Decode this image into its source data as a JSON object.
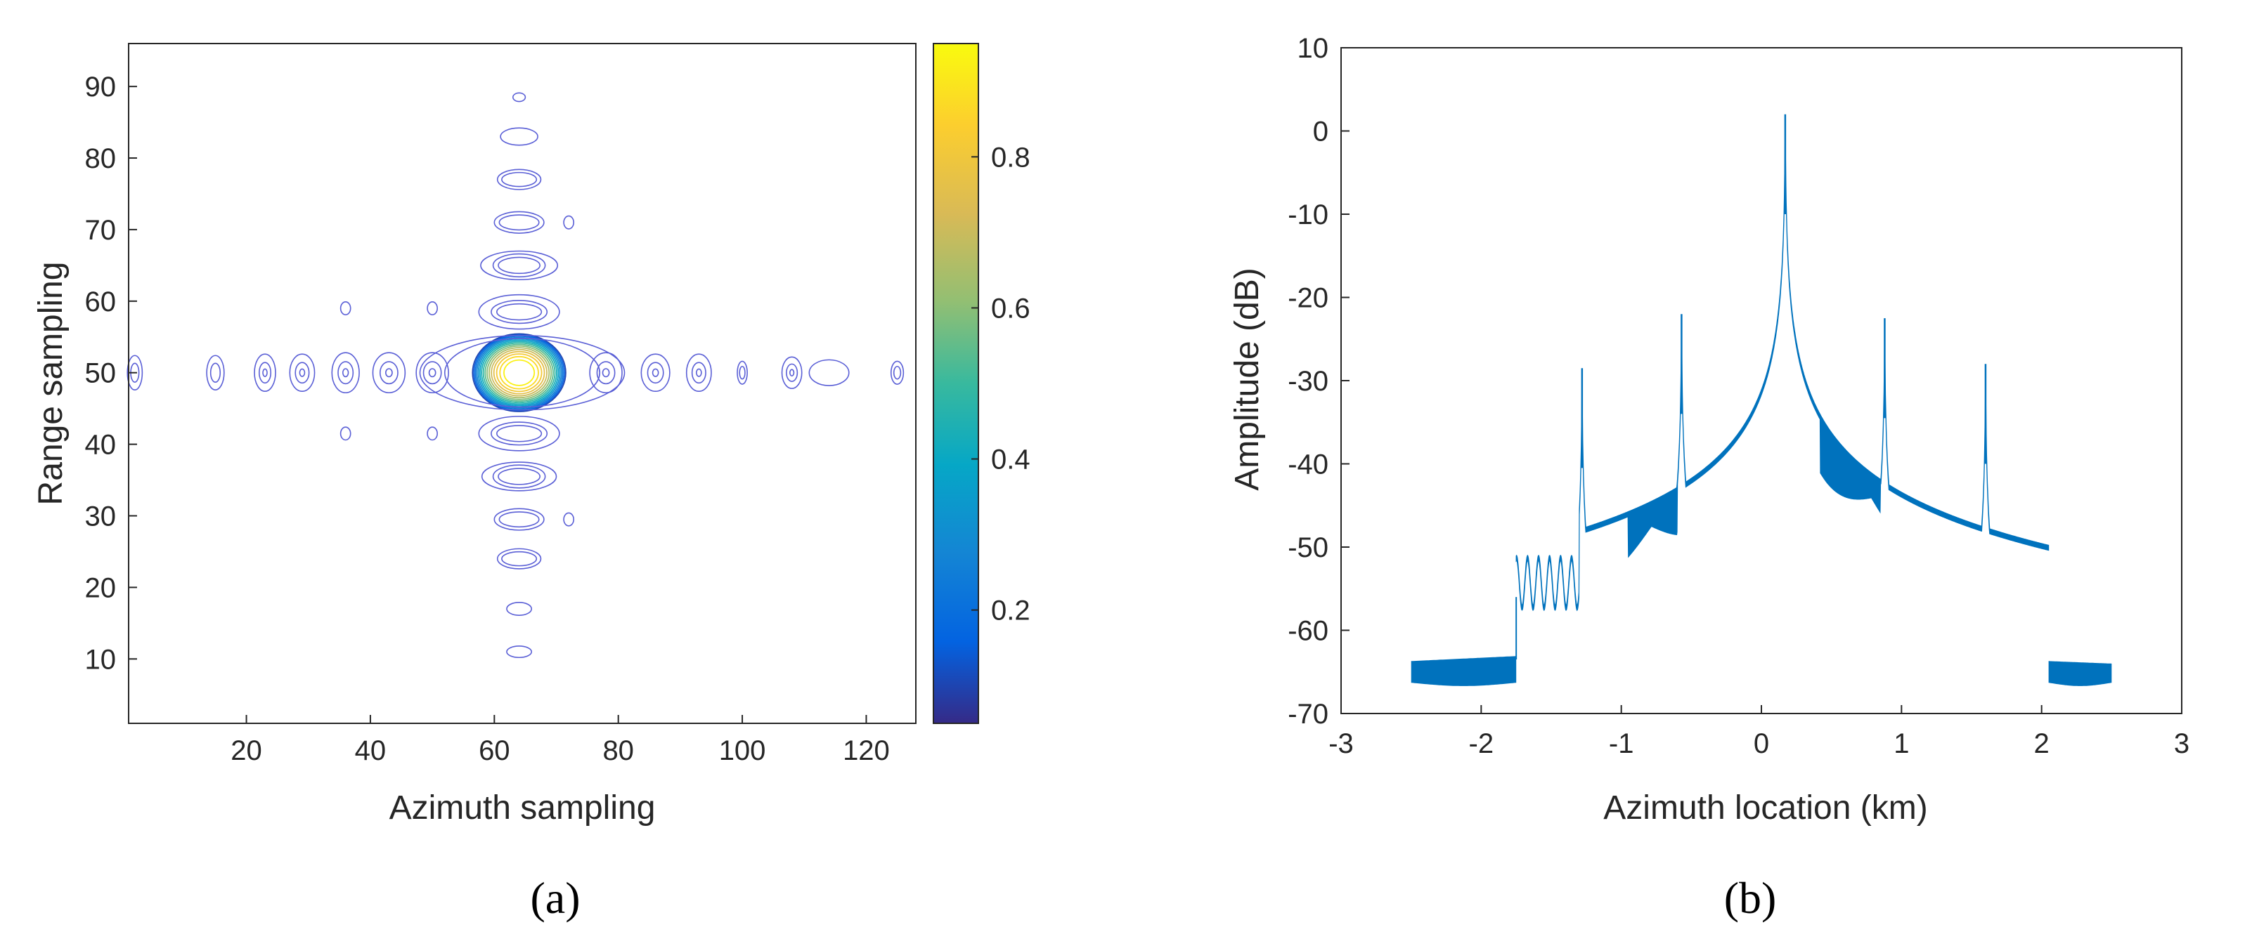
{
  "chart_data": [
    {
      "id": "a",
      "panel_label": "(a)",
      "type": "heatmap",
      "subtype": "contour",
      "xlabel": "Azimuth sampling",
      "ylabel": "Range sampling",
      "xlim": [
        1,
        128
      ],
      "ylim": [
        1,
        96
      ],
      "xticks": [
        20,
        40,
        60,
        80,
        100,
        120
      ],
      "yticks": [
        10,
        20,
        30,
        40,
        50,
        60,
        70,
        80,
        90
      ],
      "colormap": "parula",
      "colorbar_range": [
        0.05,
        0.95
      ],
      "colorbar_ticks": [
        0.2,
        0.4,
        0.6,
        0.8
      ],
      "peak": {
        "x": 64,
        "y": 50,
        "value": 0.95
      },
      "contour_line_color": "#5a5fd6",
      "grid": false
    },
    {
      "id": "b",
      "panel_label": "(b)",
      "type": "line",
      "xlabel": "Azimuth location (km)",
      "ylabel": "Amplitude (dB)",
      "xlim": [
        -3,
        3
      ],
      "ylim": [
        -70,
        10
      ],
      "xticks": [
        -3,
        -2,
        -1,
        0,
        1,
        2,
        3
      ],
      "yticks": [
        -70,
        -60,
        -50,
        -40,
        -30,
        -20,
        -10,
        0,
        10
      ],
      "line_color": "#0072bd",
      "grid": false,
      "peaks": [
        {
          "x": -1.28,
          "y": -28.5
        },
        {
          "x": -0.57,
          "y": -22.0
        },
        {
          "x": 0.17,
          "y": 2.0
        },
        {
          "x": 0.88,
          "y": -22.5
        },
        {
          "x": 1.6,
          "y": -28.0
        }
      ],
      "floor_bands": [
        {
          "from": -2.5,
          "to": -1.75,
          "upper": -63.7,
          "lower": -66.3
        },
        {
          "from": 2.05,
          "to": 2.5,
          "upper": -63.7,
          "lower": -66.3
        }
      ]
    }
  ]
}
